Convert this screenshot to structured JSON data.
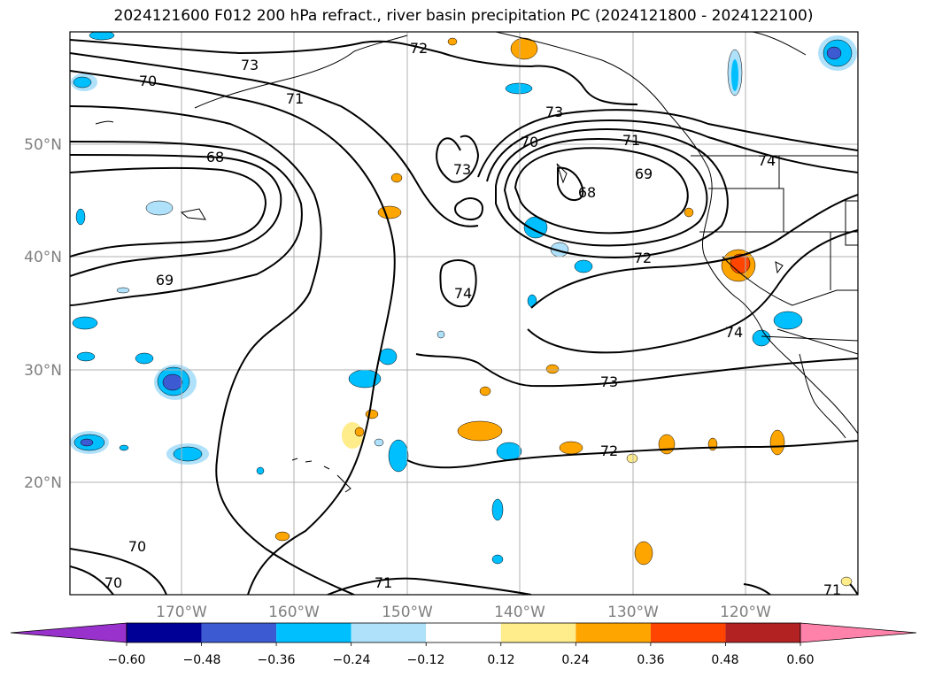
{
  "title": "2024121600 F012 200 hPa refract., river basin precipitation PC (2024121800 - 2024122100)",
  "map": {
    "lon_ticks": [
      "170°W",
      "160°W",
      "150°W",
      "140°W",
      "130°W",
      "120°W"
    ],
    "lat_ticks": [
      "50°N",
      "40°N",
      "30°N",
      "20°N"
    ],
    "contour_labels": [
      "73",
      "72",
      "70",
      "71",
      "68",
      "73",
      "70",
      "71",
      "69",
      "68",
      "73",
      "74",
      "72",
      "74",
      "69",
      "73",
      "72",
      "70",
      "70",
      "71",
      "74",
      "71"
    ]
  },
  "colorbar": {
    "ticks": [
      "−0.60",
      "−0.48",
      "−0.36",
      "−0.24",
      "−0.12",
      "0.12",
      "0.24",
      "0.36",
      "0.48",
      "0.60"
    ],
    "colors": {
      "low_extend": "#9932cc",
      "bins": [
        "#000096",
        "#3c5ad2",
        "#00bfff",
        "#afe1fa",
        "#ffffff",
        "#ffec8b",
        "#ffa500",
        "#ff4500",
        "#b22222"
      ],
      "high_extend": "#ff82ab"
    }
  }
}
